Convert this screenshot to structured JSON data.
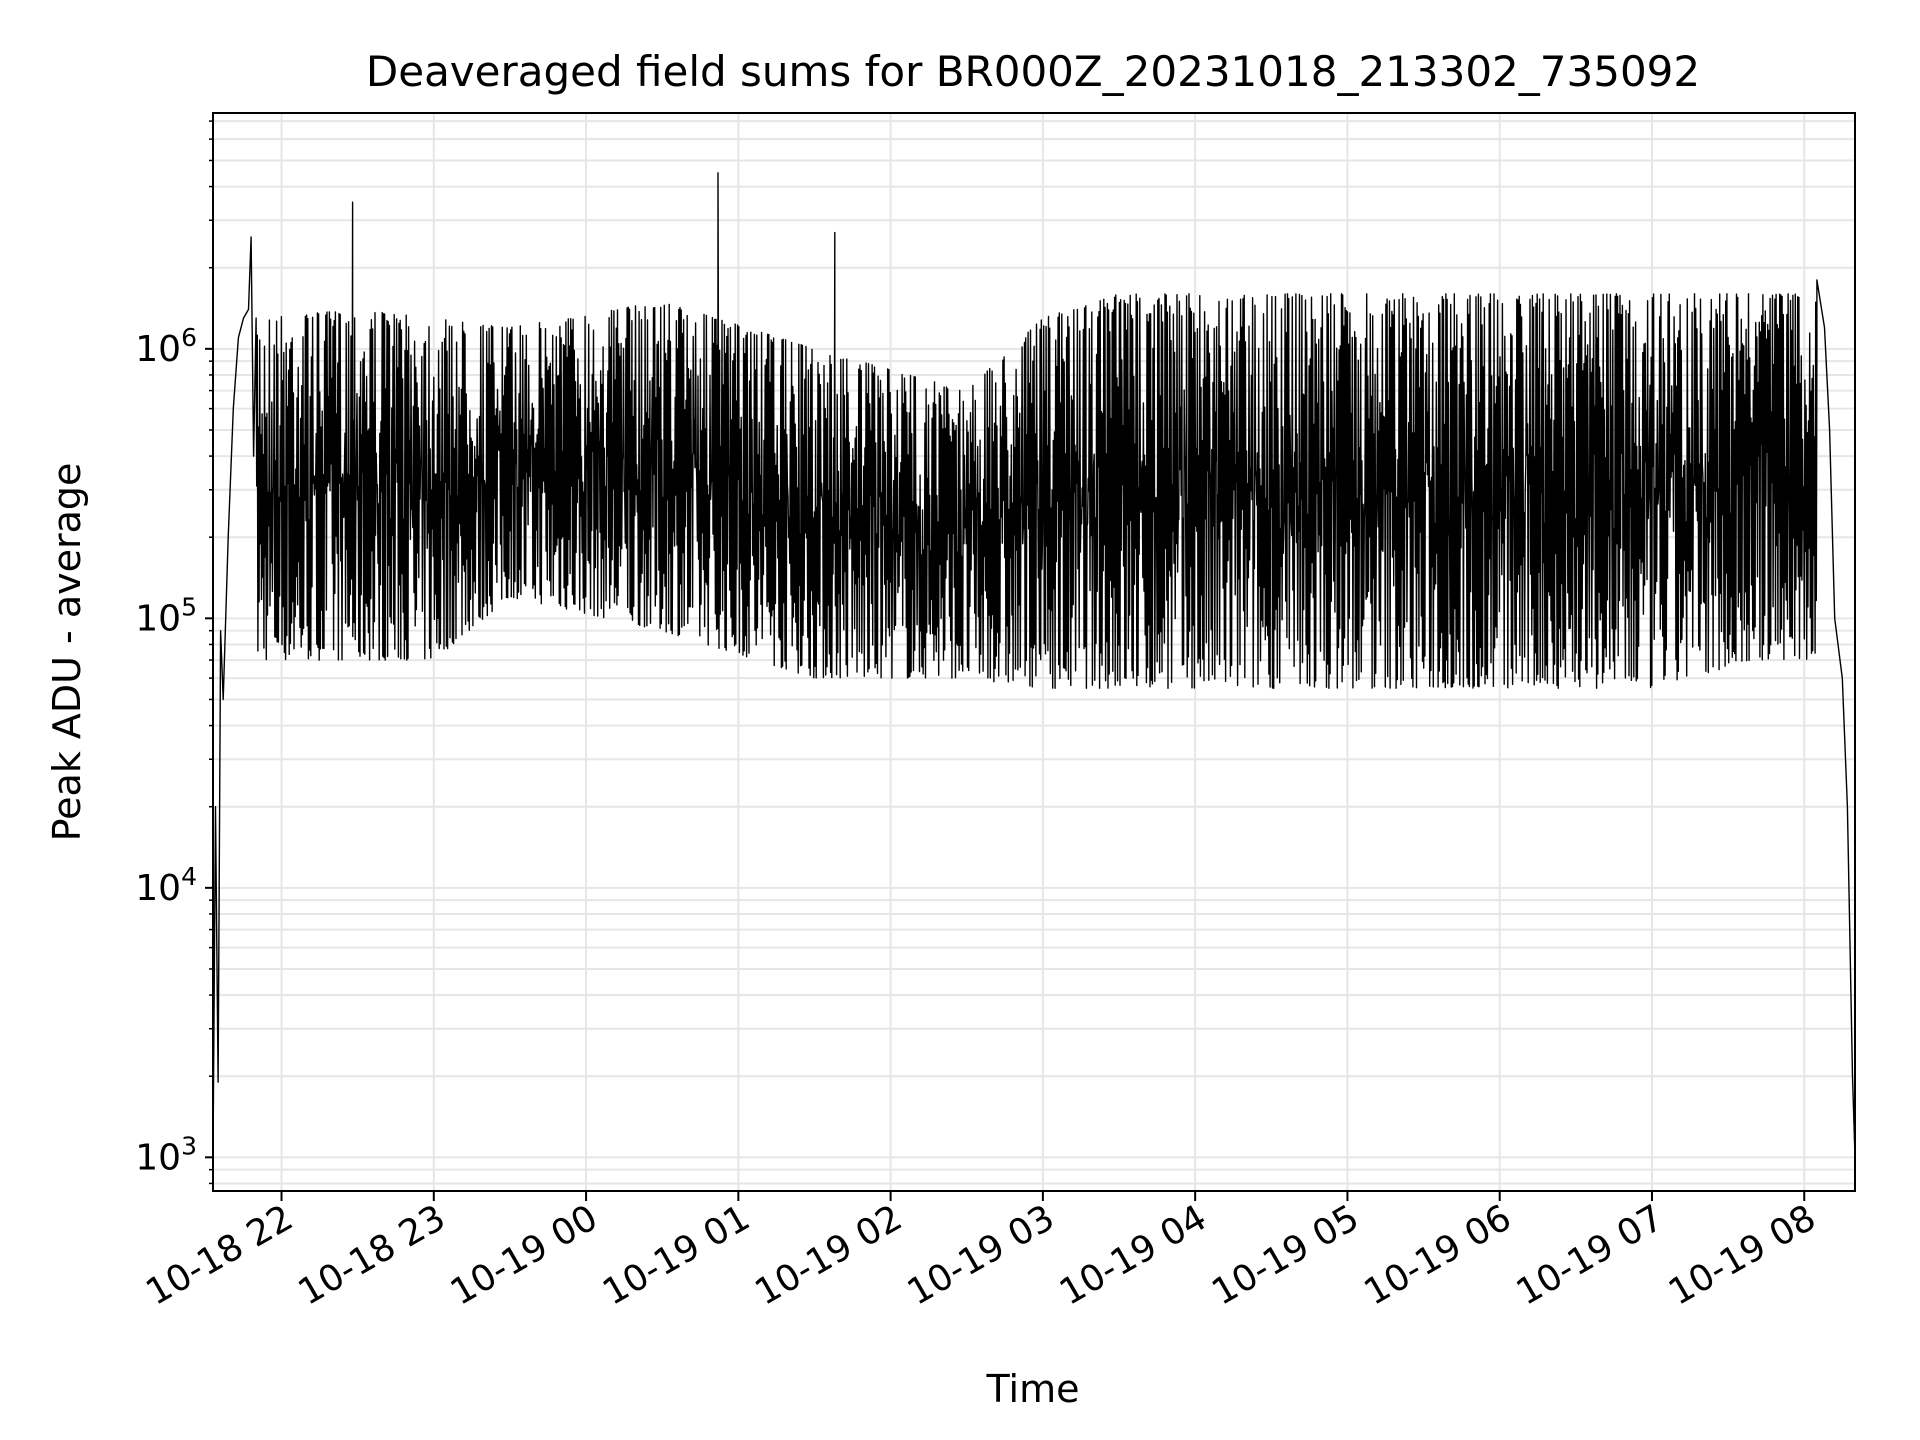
{
  "chart_data": {
    "type": "line",
    "title": "Deaveraged field sums for BR000Z_20231018_213302_735092",
    "xlabel": "Time",
    "ylabel": "Peak ADU - average",
    "yscale": "log",
    "ylim": [
      750,
      7500000
    ],
    "xlim": [
      "2023-10-18 21:33",
      "2023-10-19 08:20"
    ],
    "grid": true,
    "line_color": "#000000",
    "x_ticks": [
      {
        "time": "2023-10-18 22:00",
        "label": "10-18 22"
      },
      {
        "time": "2023-10-18 23:00",
        "label": "10-18 23"
      },
      {
        "time": "2023-10-19 00:00",
        "label": "10-19 00"
      },
      {
        "time": "2023-10-19 01:00",
        "label": "10-19 01"
      },
      {
        "time": "2023-10-19 02:00",
        "label": "10-19 02"
      },
      {
        "time": "2023-10-19 03:00",
        "label": "10-19 03"
      },
      {
        "time": "2023-10-19 04:00",
        "label": "10-19 04"
      },
      {
        "time": "2023-10-19 05:00",
        "label": "10-19 05"
      },
      {
        "time": "2023-10-19 06:00",
        "label": "10-19 06"
      },
      {
        "time": "2023-10-19 07:00",
        "label": "10-19 07"
      },
      {
        "time": "2023-10-19 08:00",
        "label": "10-19 08"
      }
    ],
    "y_ticks": [
      {
        "value": 1000,
        "base": "10",
        "exp": "3"
      },
      {
        "value": 10000,
        "base": "10",
        "exp": "4"
      },
      {
        "value": 100000,
        "base": "10",
        "exp": "5"
      },
      {
        "value": 1000000,
        "base": "10",
        "exp": "6"
      }
    ],
    "series": [
      {
        "points": [
          [
            "2023-10-18 21:33",
            1000
          ],
          [
            "2023-10-18 21:34",
            20000
          ],
          [
            "2023-10-18 21:35",
            1900
          ],
          [
            "2023-10-18 21:36",
            90000
          ],
          [
            "2023-10-18 21:37",
            50000
          ],
          [
            "2023-10-18 21:39",
            200000
          ],
          [
            "2023-10-18 21:41",
            600000
          ],
          [
            "2023-10-18 21:43",
            1100000
          ],
          [
            "2023-10-18 21:45",
            1300000
          ],
          [
            "2023-10-18 21:47",
            1400000
          ],
          [
            "2023-10-18 21:48",
            2600000
          ],
          [
            "2023-10-18 21:49",
            400000
          ],
          [
            "2023-10-18 21:51",
            900000
          ],
          [
            "2023-10-18 21:53",
            700000
          ],
          [
            "2023-10-18 21:55",
            900000
          ],
          [
            "2023-10-18 21:57",
            800000
          ],
          [
            "2023-10-18 21:59",
            500000
          ],
          [
            "2023-10-18 22:02",
            200000
          ],
          [
            "2023-10-18 22:05",
            120000
          ],
          [
            "2023-10-18 22:08",
            90000
          ],
          [
            "2023-10-18 22:12",
            75000
          ],
          [
            "2023-10-18 22:16",
            400000
          ],
          [
            "2023-10-18 22:20",
            1000000
          ],
          [
            "2023-10-18 22:25",
            1400000
          ],
          [
            "2023-10-18 22:28",
            3500000
          ],
          [
            "2023-10-18 22:30",
            700000
          ],
          [
            "2023-10-18 22:40",
            500000
          ],
          [
            "2023-10-18 22:50",
            700000
          ],
          [
            "2023-10-18 22:59",
            900000
          ],
          [
            "2023-10-18 23:05",
            1200000
          ],
          [
            "2023-10-18 23:10",
            1500000
          ],
          [
            "2023-10-18 23:15",
            1000000
          ],
          [
            "2023-10-18 23:30",
            1000000
          ],
          [
            "2023-10-18 23:45",
            900000
          ],
          [
            "2023-10-19 00:00",
            850000
          ],
          [
            "2023-10-19 00:15",
            800000
          ],
          [
            "2023-10-19 00:30",
            1100000
          ],
          [
            "2023-10-19 00:45",
            1400000
          ],
          [
            "2023-10-19 00:52",
            4500000
          ],
          [
            "2023-10-19 01:00",
            900000
          ],
          [
            "2023-10-19 01:15",
            600000
          ],
          [
            "2023-10-19 01:30",
            500000
          ],
          [
            "2023-10-19 01:38",
            2700000
          ],
          [
            "2023-10-19 01:45",
            400000
          ],
          [
            "2023-10-19 02:00",
            300000
          ],
          [
            "2023-10-19 02:15",
            200000
          ],
          [
            "2023-10-19 02:30",
            150000
          ],
          [
            "2023-10-19 02:45",
            90000
          ],
          [
            "2023-10-19 03:00",
            70000
          ],
          [
            "2023-10-19 03:15",
            60000
          ],
          [
            "2023-10-19 03:30",
            1500000
          ],
          [
            "2023-10-19 04:00",
            1500000
          ],
          [
            "2023-10-19 04:30",
            1500000
          ],
          [
            "2023-10-19 05:00",
            1500000
          ],
          [
            "2023-10-19 05:30",
            1500000
          ],
          [
            "2023-10-19 06:00",
            1500000
          ],
          [
            "2023-10-19 06:30",
            1500000
          ],
          [
            "2023-10-19 07:00",
            1500000
          ],
          [
            "2023-10-19 07:30",
            1500000
          ],
          [
            "2023-10-19 07:45",
            1500000
          ],
          [
            "2023-10-19 08:00",
            1600000
          ],
          [
            "2023-10-19 08:05",
            1800000
          ],
          [
            "2023-10-19 08:08",
            1200000
          ],
          [
            "2023-10-19 08:10",
            500000
          ],
          [
            "2023-10-19 08:12",
            100000
          ],
          [
            "2023-10-19 08:15",
            60000
          ],
          [
            "2023-10-19 08:17",
            20000
          ],
          [
            "2023-10-19 08:19",
            2000
          ],
          [
            "2023-10-19 08:20",
            1000
          ]
        ],
        "upper_envelope": [
          [
            "2023-10-18 21:50",
            1300000
          ],
          [
            "2023-10-18 22:30",
            1400000
          ],
          [
            "2023-10-18 23:30",
            1200000
          ],
          [
            "2023-10-19 00:30",
            1500000
          ],
          [
            "2023-10-19 01:30",
            1000000
          ],
          [
            "2023-10-19 02:30",
            700000
          ],
          [
            "2023-10-19 03:00",
            1300000
          ],
          [
            "2023-10-19 03:30",
            1600000
          ],
          [
            "2023-10-19 05:00",
            1600000
          ],
          [
            "2023-10-19 06:30",
            1600000
          ],
          [
            "2023-10-19 08:05",
            1600000
          ]
        ],
        "lower_envelope": [
          [
            "2023-10-18 22:10",
            70000
          ],
          [
            "2023-10-18 23:00",
            70000
          ],
          [
            "2023-10-18 23:30",
            120000
          ],
          [
            "2023-10-19 00:30",
            90000
          ],
          [
            "2023-10-19 01:30",
            60000
          ],
          [
            "2023-10-19 02:30",
            60000
          ],
          [
            "2023-10-19 03:00",
            55000
          ],
          [
            "2023-10-19 04:00",
            55000
          ],
          [
            "2023-10-19 05:00",
            55000
          ],
          [
            "2023-10-19 06:00",
            55000
          ],
          [
            "2023-10-19 07:00",
            55000
          ],
          [
            "2023-10-19 07:40",
            70000
          ]
        ]
      }
    ]
  }
}
